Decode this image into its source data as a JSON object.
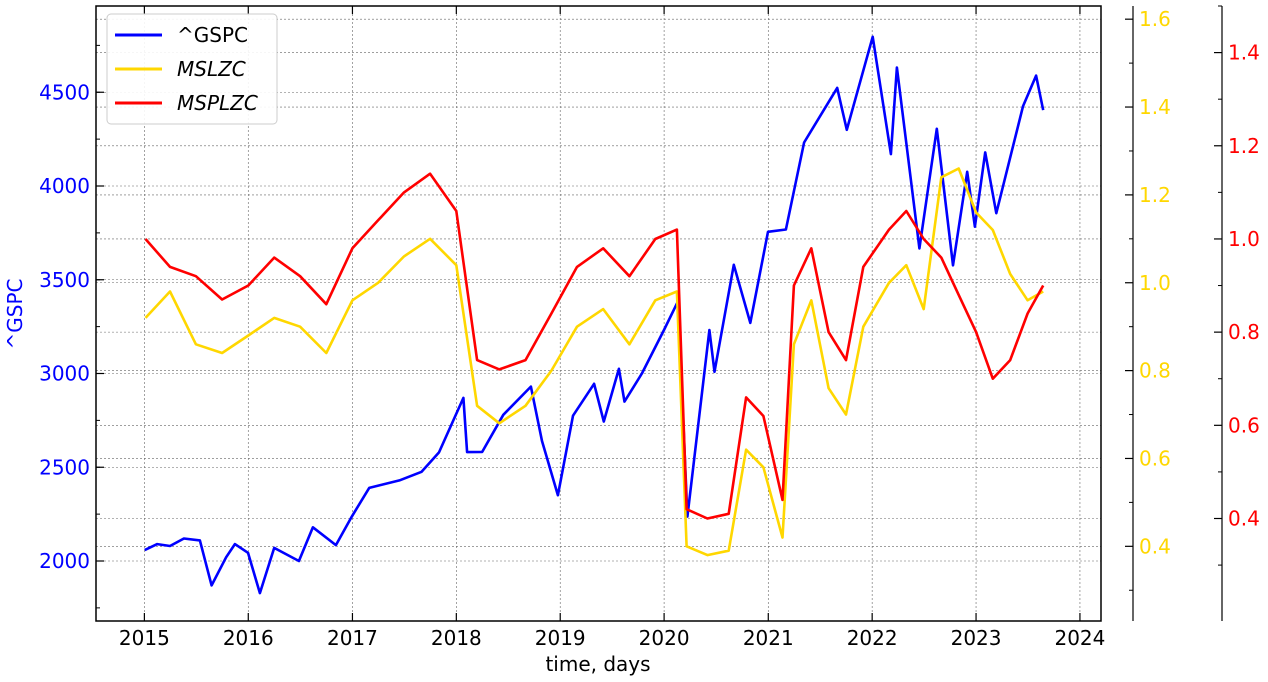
{
  "chart_data": {
    "type": "line",
    "title": "",
    "xlabel": "time, days",
    "colors": {
      "gspc": "#0000ff",
      "mslzc": "#ffd700",
      "msplzc": "#ff0000"
    },
    "x_axis": {
      "range": [
        "2014-07-15",
        "2024-03-15"
      ],
      "ticks": [
        "2015",
        "2016",
        "2017",
        "2018",
        "2019",
        "2020",
        "2021",
        "2022",
        "2023",
        "2024"
      ]
    },
    "left_axis": {
      "label": "^GSPC",
      "range": [
        1680,
        4960
      ],
      "ticks": [
        {
          "value": 2000,
          "label": "2000"
        },
        {
          "value": 2500,
          "label": "2500"
        },
        {
          "value": 3000,
          "label": "3000"
        },
        {
          "value": 3500,
          "label": "3500"
        },
        {
          "value": 4000,
          "label": "4000"
        },
        {
          "value": 4500,
          "label": "4500"
        }
      ]
    },
    "right_axis_1": {
      "range": [
        0.23,
        1.63
      ],
      "ticks": [
        {
          "value": 0.4,
          "label": "0.4"
        },
        {
          "value": 0.6,
          "label": "0.6"
        },
        {
          "value": 0.8,
          "label": "0.8"
        },
        {
          "value": 1.0,
          "label": "1.0"
        },
        {
          "value": 1.2,
          "label": "1.2"
        },
        {
          "value": 1.4,
          "label": "1.4"
        },
        {
          "value": 1.6,
          "label": "1.6"
        }
      ]
    },
    "right_axis_2": {
      "range": [
        0.18,
        1.5
      ],
      "ticks": [
        {
          "value": 0.4,
          "label": "0.4"
        },
        {
          "value": 0.6,
          "label": "0.6"
        },
        {
          "value": 0.8,
          "label": "0.8"
        },
        {
          "value": 1.0,
          "label": "1.0"
        },
        {
          "value": 1.2,
          "label": "1.2"
        },
        {
          "value": 1.4,
          "label": "1.4"
        }
      ]
    },
    "legend": {
      "position": "top-left",
      "entries": [
        {
          "label": "^GSPC",
          "series": "gspc",
          "italic": false
        },
        {
          "label": "MSLZC",
          "series": "mslzc",
          "italic": true
        },
        {
          "label": "MSPLZC",
          "series": "msplzc",
          "italic": true
        }
      ]
    },
    "grid": true,
    "series": [
      {
        "name": "^GSPC",
        "axis": "left",
        "points": [
          [
            "2015-01-02",
            2058
          ],
          [
            "2015-02-15",
            2090
          ],
          [
            "2015-04-01",
            2080
          ],
          [
            "2015-05-20",
            2120
          ],
          [
            "2015-07-15",
            2110
          ],
          [
            "2015-08-25",
            1870
          ],
          [
            "2015-10-15",
            2020
          ],
          [
            "2015-11-15",
            2090
          ],
          [
            "2015-12-31",
            2044
          ],
          [
            "2016-02-11",
            1829
          ],
          [
            "2016-04-01",
            2070
          ],
          [
            "2016-06-27",
            2000
          ],
          [
            "2016-08-15",
            2180
          ],
          [
            "2016-11-04",
            2085
          ],
          [
            "2016-12-30",
            2238
          ],
          [
            "2017-03-01",
            2390
          ],
          [
            "2017-06-15",
            2430
          ],
          [
            "2017-09-01",
            2476
          ],
          [
            "2017-11-01",
            2579
          ],
          [
            "2018-01-26",
            2870
          ],
          [
            "2018-02-08",
            2581
          ],
          [
            "2018-04-02",
            2582
          ],
          [
            "2018-06-15",
            2780
          ],
          [
            "2018-09-20",
            2930
          ],
          [
            "2018-10-29",
            2640
          ],
          [
            "2018-12-24",
            2351
          ],
          [
            "2019-02-15",
            2775
          ],
          [
            "2019-04-30",
            2945
          ],
          [
            "2019-06-03",
            2744
          ],
          [
            "2019-07-26",
            3025
          ],
          [
            "2019-08-15",
            2850
          ],
          [
            "2019-10-15",
            3000
          ],
          [
            "2019-12-31",
            3230
          ],
          [
            "2020-02-19",
            3386
          ],
          [
            "2020-03-23",
            2237
          ],
          [
            "2020-06-08",
            3232
          ],
          [
            "2020-06-26",
            3009
          ],
          [
            "2020-09-02",
            3580
          ],
          [
            "2020-10-30",
            3270
          ],
          [
            "2020-12-31",
            3756
          ],
          [
            "2021-03-04",
            3768
          ],
          [
            "2021-05-07",
            4232
          ],
          [
            "2021-08-31",
            4523
          ],
          [
            "2021-10-04",
            4300
          ],
          [
            "2022-01-03",
            4796
          ],
          [
            "2022-03-08",
            4170
          ],
          [
            "2022-03-29",
            4632
          ],
          [
            "2022-06-16",
            3667
          ],
          [
            "2022-08-16",
            4305
          ],
          [
            "2022-10-12",
            3577
          ],
          [
            "2022-12-01",
            4076
          ],
          [
            "2022-12-28",
            3783
          ],
          [
            "2023-02-02",
            4179
          ],
          [
            "2023-03-13",
            3855
          ],
          [
            "2023-06-15",
            4425
          ],
          [
            "2023-07-31",
            4589
          ],
          [
            "2023-08-25",
            4405
          ]
        ]
      },
      {
        "name": "MSLZC",
        "axis": "right_1",
        "points": [
          [
            "2015-01-05",
            0.92
          ],
          [
            "2015-04-01",
            0.98
          ],
          [
            "2015-07-01",
            0.86
          ],
          [
            "2015-10-01",
            0.84
          ],
          [
            "2016-01-01",
            0.88
          ],
          [
            "2016-04-01",
            0.92
          ],
          [
            "2016-07-01",
            0.9
          ],
          [
            "2016-10-01",
            0.84
          ],
          [
            "2017-01-01",
            0.96
          ],
          [
            "2017-04-01",
            1.0
          ],
          [
            "2017-07-01",
            1.06
          ],
          [
            "2017-10-01",
            1.1
          ],
          [
            "2018-01-01",
            1.04
          ],
          [
            "2018-03-15",
            0.72
          ],
          [
            "2018-06-01",
            0.68
          ],
          [
            "2018-09-01",
            0.72
          ],
          [
            "2018-12-01",
            0.8
          ],
          [
            "2019-03-01",
            0.9
          ],
          [
            "2019-06-01",
            0.94
          ],
          [
            "2019-09-01",
            0.86
          ],
          [
            "2019-12-01",
            0.96
          ],
          [
            "2020-02-15",
            0.98
          ],
          [
            "2020-03-20",
            0.4
          ],
          [
            "2020-06-01",
            0.38
          ],
          [
            "2020-08-15",
            0.39
          ],
          [
            "2020-10-15",
            0.62
          ],
          [
            "2020-12-15",
            0.58
          ],
          [
            "2021-02-20",
            0.42
          ],
          [
            "2021-04-01",
            0.86
          ],
          [
            "2021-06-01",
            0.96
          ],
          [
            "2021-08-01",
            0.76
          ],
          [
            "2021-10-01",
            0.7
          ],
          [
            "2021-12-01",
            0.9
          ],
          [
            "2022-03-01",
            1.0
          ],
          [
            "2022-05-01",
            1.04
          ],
          [
            "2022-07-01",
            0.94
          ],
          [
            "2022-09-01",
            1.24
          ],
          [
            "2022-11-01",
            1.26
          ],
          [
            "2023-01-01",
            1.16
          ],
          [
            "2023-03-01",
            1.12
          ],
          [
            "2023-05-01",
            1.02
          ],
          [
            "2023-07-01",
            0.96
          ],
          [
            "2023-08-25",
            0.98
          ]
        ]
      },
      {
        "name": "MSPLZC",
        "axis": "right_2",
        "points": [
          [
            "2015-01-05",
            1.0
          ],
          [
            "2015-04-01",
            0.94
          ],
          [
            "2015-07-01",
            0.92
          ],
          [
            "2015-10-01",
            0.87
          ],
          [
            "2016-01-01",
            0.9
          ],
          [
            "2016-04-01",
            0.96
          ],
          [
            "2016-07-01",
            0.92
          ],
          [
            "2016-10-01",
            0.86
          ],
          [
            "2017-01-01",
            0.98
          ],
          [
            "2017-04-01",
            1.04
          ],
          [
            "2017-07-01",
            1.1
          ],
          [
            "2017-10-01",
            1.14
          ],
          [
            "2018-01-01",
            1.06
          ],
          [
            "2018-03-15",
            0.74
          ],
          [
            "2018-06-01",
            0.72
          ],
          [
            "2018-09-01",
            0.74
          ],
          [
            "2018-12-01",
            0.84
          ],
          [
            "2019-03-01",
            0.94
          ],
          [
            "2019-06-01",
            0.98
          ],
          [
            "2019-09-01",
            0.92
          ],
          [
            "2019-12-01",
            1.0
          ],
          [
            "2020-02-15",
            1.02
          ],
          [
            "2020-03-20",
            0.42
          ],
          [
            "2020-06-01",
            0.4
          ],
          [
            "2020-08-15",
            0.41
          ],
          [
            "2020-10-15",
            0.66
          ],
          [
            "2020-12-15",
            0.62
          ],
          [
            "2021-02-20",
            0.44
          ],
          [
            "2021-04-01",
            0.9
          ],
          [
            "2021-06-01",
            0.98
          ],
          [
            "2021-08-01",
            0.8
          ],
          [
            "2021-10-01",
            0.74
          ],
          [
            "2021-12-01",
            0.94
          ],
          [
            "2022-03-01",
            1.02
          ],
          [
            "2022-05-01",
            1.06
          ],
          [
            "2022-07-01",
            1.0
          ],
          [
            "2022-09-01",
            0.96
          ],
          [
            "2022-11-01",
            0.88
          ],
          [
            "2023-01-01",
            0.8
          ],
          [
            "2023-03-01",
            0.7
          ],
          [
            "2023-05-01",
            0.74
          ],
          [
            "2023-07-01",
            0.84
          ],
          [
            "2023-08-25",
            0.9
          ]
        ]
      }
    ]
  }
}
